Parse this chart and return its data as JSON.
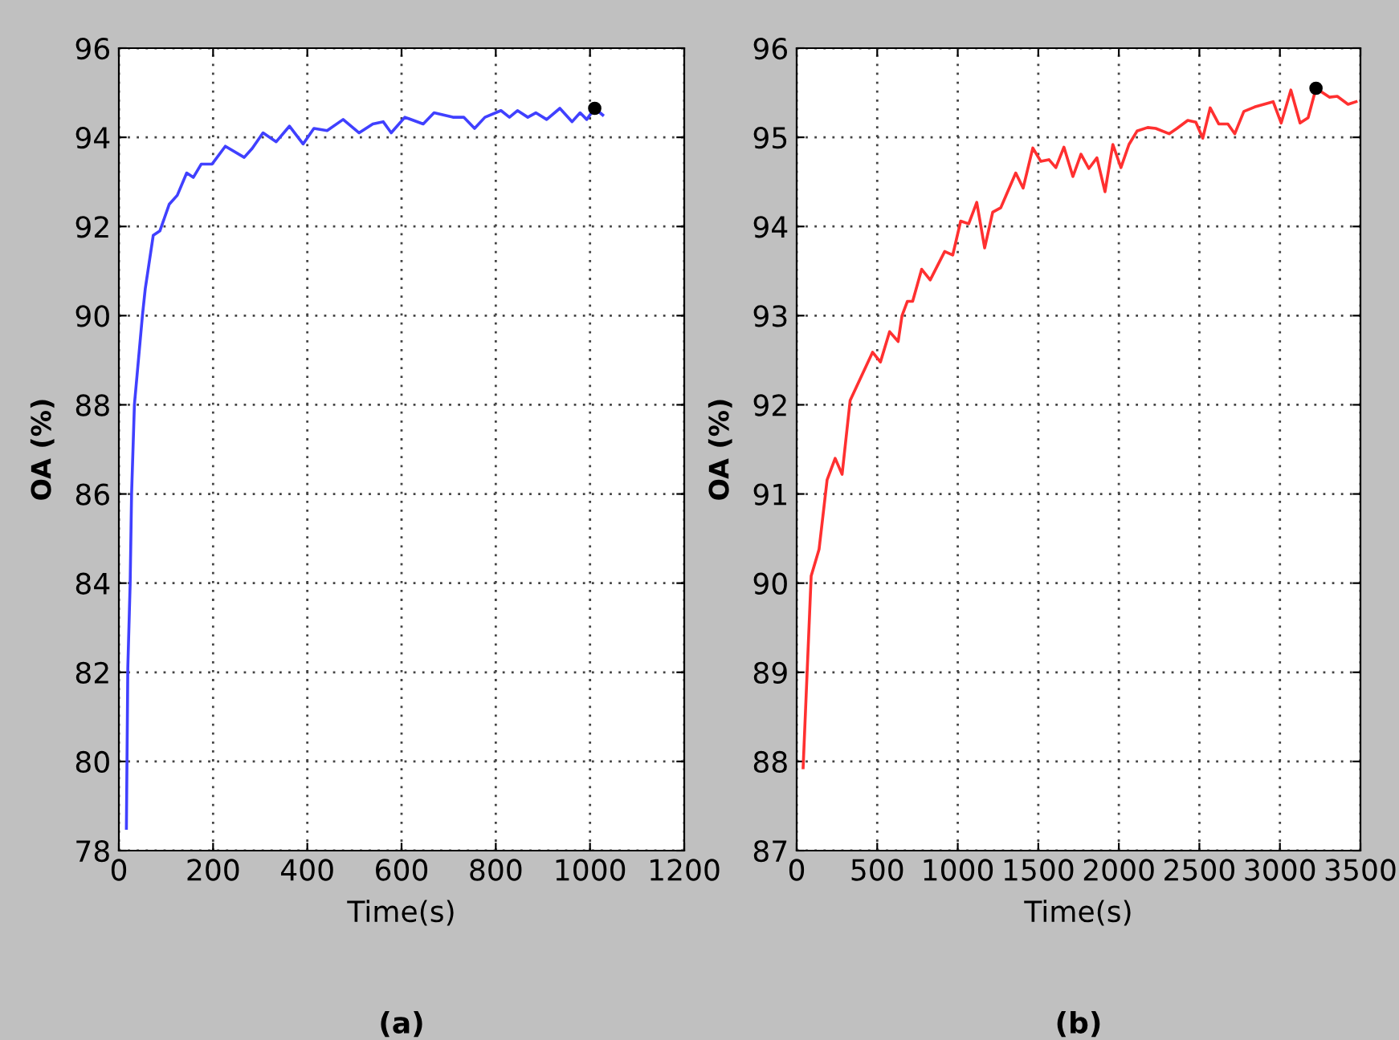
{
  "chart_data": [
    {
      "type": "line",
      "xlabel": "Time(s)",
      "ylabel": "OA (%)",
      "annotations": [
        "(a)"
      ],
      "xlim": [
        0,
        1200
      ],
      "xticks": [
        0,
        200,
        400,
        600,
        800,
        1000,
        1200
      ],
      "ylim": [
        78,
        96
      ],
      "yticks": [
        78,
        80,
        82,
        84,
        86,
        88,
        90,
        92,
        94,
        96
      ],
      "grid": true,
      "series": [
        {
          "color": "#4040ff",
          "x": [
            16,
            19,
            24,
            27,
            33,
            50,
            56,
            73,
            87,
            107,
            124,
            144,
            158,
            175,
            198,
            226,
            266,
            283,
            306,
            334,
            362,
            391,
            414,
            442,
            476,
            510,
            539,
            561,
            578,
            607,
            646,
            669,
            709,
            732,
            755,
            777,
            811,
            829,
            846,
            868,
            885,
            908,
            936,
            962,
            979,
            993,
            1010,
            1027
          ],
          "values": [
            78.5,
            82.1,
            84.0,
            86.0,
            88.0,
            90.0,
            90.6,
            91.8,
            91.9,
            92.5,
            92.7,
            93.2,
            93.1,
            93.4,
            93.4,
            93.8,
            93.55,
            93.75,
            94.1,
            93.9,
            94.25,
            93.85,
            94.2,
            94.15,
            94.4,
            94.1,
            94.3,
            94.35,
            94.1,
            94.45,
            94.3,
            94.55,
            94.45,
            94.45,
            94.2,
            94.45,
            94.6,
            94.45,
            94.6,
            94.45,
            94.55,
            94.4,
            94.65,
            94.35,
            94.55,
            94.4,
            94.65,
            94.5
          ]
        },
        {
          "type": "scatter",
          "color": "#000000",
          "marker": "circle",
          "x": [
            1010
          ],
          "values": [
            94.65
          ]
        }
      ]
    },
    {
      "type": "line",
      "xlabel": "Time(s)",
      "ylabel": "OA (%)",
      "annotations": [
        "(b)"
      ],
      "xlim": [
        0,
        3500
      ],
      "xticks": [
        0,
        500,
        1000,
        1500,
        2000,
        2500,
        3000,
        3500
      ],
      "ylim": [
        87,
        96
      ],
      "yticks": [
        87,
        88,
        89,
        90,
        91,
        92,
        93,
        94,
        95,
        96
      ],
      "grid": true,
      "series": [
        {
          "color": "#ff3030",
          "x": [
            40,
            90,
            139,
            189,
            239,
            282,
            332,
            471,
            520,
            577,
            630,
            654,
            687,
            720,
            776,
            829,
            919,
            969,
            1018,
            1068,
            1118,
            1167,
            1217,
            1267,
            1360,
            1406,
            1466,
            1516,
            1566,
            1609,
            1659,
            1715,
            1765,
            1814,
            1864,
            1914,
            1963,
            2013,
            2063,
            2113,
            2179,
            2229,
            2312,
            2361,
            2428,
            2478,
            2521,
            2567,
            2620,
            2677,
            2720,
            2776,
            2843,
            2958,
            3008,
            3068,
            3125,
            3175,
            3224,
            3307,
            3356,
            3423,
            3473
          ],
          "values": [
            87.93,
            90.08,
            90.38,
            91.16,
            91.4,
            91.22,
            92.05,
            92.59,
            92.48,
            92.82,
            92.71,
            93.0,
            93.16,
            93.16,
            93.52,
            93.4,
            93.72,
            93.68,
            94.06,
            94.03,
            94.27,
            93.76,
            94.16,
            94.21,
            94.6,
            94.43,
            94.88,
            94.73,
            94.75,
            94.66,
            94.89,
            94.56,
            94.81,
            94.65,
            94.77,
            94.39,
            94.92,
            94.66,
            94.92,
            95.07,
            95.11,
            95.1,
            95.04,
            95.1,
            95.19,
            95.17,
            94.99,
            95.33,
            95.15,
            95.15,
            95.04,
            95.29,
            95.34,
            95.4,
            95.16,
            95.53,
            95.16,
            95.22,
            95.55,
            95.45,
            95.46,
            95.37,
            95.4
          ]
        },
        {
          "type": "scatter",
          "color": "#000000",
          "marker": "circle",
          "x": [
            3224
          ],
          "values": [
            95.55
          ]
        }
      ]
    }
  ]
}
